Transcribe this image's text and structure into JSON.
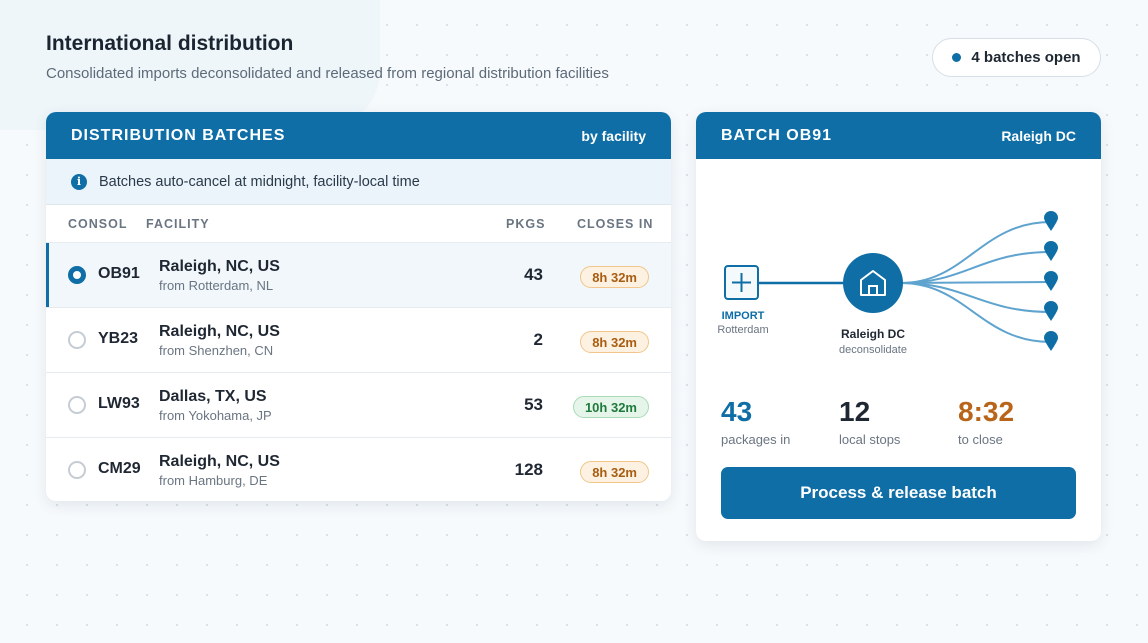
{
  "header": {
    "title": "International distribution",
    "subtitle": "Consolidated imports deconsolidated and released from regional distribution facilities",
    "open_pill": "4 batches open"
  },
  "batches_card": {
    "title": "DISTRIBUTION BATCHES",
    "group_by": "by facility",
    "notice": "Batches auto-cancel at midnight, facility-local time",
    "columns": {
      "consol": "CONSOL",
      "facility": "FACILITY",
      "pkgs": "PKGS",
      "closes_in": "CLOSES IN"
    },
    "rows": [
      {
        "consol": "OB91",
        "facility": "Raleigh, NC, US",
        "origin": "from Rotterdam, NL",
        "pkgs": "43",
        "closes_in": "8h 32m",
        "badge": "amber",
        "selected": true
      },
      {
        "consol": "YB23",
        "facility": "Raleigh, NC, US",
        "origin": "from Shenzhen, CN",
        "pkgs": "2",
        "closes_in": "8h 32m",
        "badge": "amber",
        "selected": false
      },
      {
        "consol": "LW93",
        "facility": "Dallas, TX, US",
        "origin": "from Yokohama, JP",
        "pkgs": "53",
        "closes_in": "10h 32m",
        "badge": "green",
        "selected": false
      },
      {
        "consol": "CM29",
        "facility": "Raleigh, NC, US",
        "origin": "from Hamburg, DE",
        "pkgs": "128",
        "closes_in": "8h 32m",
        "badge": "amber",
        "selected": false
      }
    ]
  },
  "detail_card": {
    "title": "BATCH OB91",
    "facility": "Raleigh DC",
    "diagram": {
      "import_label": "IMPORT",
      "import_sub": "Rotterdam",
      "hub_label": "Raleigh DC",
      "hub_sub": "deconsolidate",
      "stop_count": 5
    },
    "stats": [
      {
        "value": "43",
        "label": "packages in",
        "color": "#0f6ea6"
      },
      {
        "value": "12",
        "label": "local stops",
        "color": "#1f2733"
      },
      {
        "value": "8:32",
        "label": "to close",
        "color": "#b8651a"
      }
    ],
    "action": "Process & release batch"
  },
  "colors": {
    "accent": "#0f6ea6",
    "amber": "#b8651a",
    "green": "#1f7a3c"
  }
}
